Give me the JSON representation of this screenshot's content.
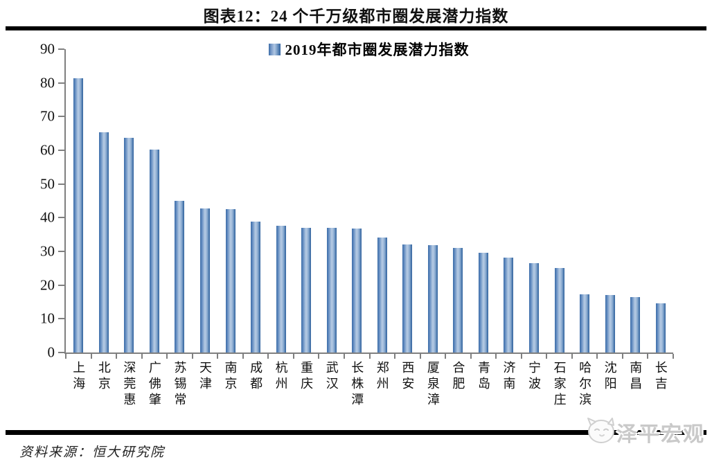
{
  "page": {
    "source_note": "资料来源：恒大研究院",
    "watermark": "泽平宏观"
  },
  "chart_data": {
    "type": "bar",
    "title": "图表12：24 个千万级都市圈发展潜力指数",
    "legend": [
      "2019年都市圈发展潜力指数"
    ],
    "categories": [
      "上海",
      "北京",
      "深莞惠",
      "广佛肇",
      "苏锡常",
      "天津",
      "南京",
      "成都",
      "杭州",
      "重庆",
      "武汉",
      "长株潭",
      "郑州",
      "西安",
      "厦泉漳",
      "合肥",
      "青岛",
      "济南",
      "宁波",
      "石家庄",
      "哈尔滨",
      "沈阳",
      "南昌",
      "长吉"
    ],
    "values": [
      81.4,
      65.4,
      63.6,
      60.2,
      45.0,
      42.8,
      42.5,
      38.8,
      37.6,
      37.0,
      36.9,
      36.8,
      34.1,
      32.0,
      31.9,
      31.0,
      29.5,
      28.1,
      26.5,
      25.0,
      17.3,
      17.0,
      16.4,
      14.5
    ],
    "ylim": [
      0,
      90
    ],
    "yticks": [
      0,
      10,
      20,
      30,
      40,
      50,
      60,
      70,
      80,
      90
    ],
    "grid": false,
    "legend_position": "top-center",
    "bar_color_edge": "#2c5f9c",
    "bar_color_mid": "#b0c6e2",
    "axis_color": "#7f7f7f"
  }
}
